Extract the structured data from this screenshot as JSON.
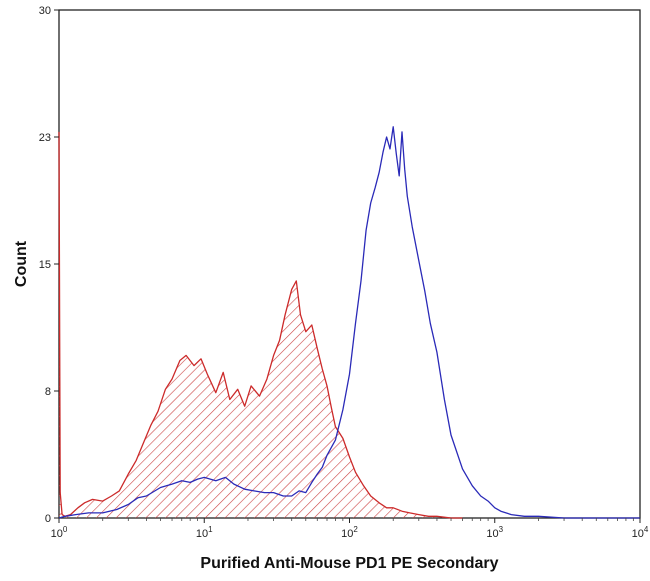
{
  "chart_data": {
    "type": "area",
    "xlabel": "Purified Anti-Mouse PD1 PE Secondary",
    "ylabel": "Count",
    "x_scale": "log",
    "xlim": [
      1,
      10000
    ],
    "ylim": [
      0,
      30
    ],
    "y_ticks": [
      {
        "value": 0,
        "label": "0"
      },
      {
        "value": 7.5,
        "label": "8"
      },
      {
        "value": 15,
        "label": "15"
      },
      {
        "value": 22.5,
        "label": "23"
      },
      {
        "value": 30,
        "label": "30"
      }
    ],
    "x_ticks": [
      {
        "value": 1,
        "base": "10",
        "exp": "0"
      },
      {
        "value": 10,
        "base": "10",
        "exp": "1"
      },
      {
        "value": 100,
        "base": "10",
        "exp": "2"
      },
      {
        "value": 1000,
        "base": "10",
        "exp": "3"
      },
      {
        "value": 10000,
        "base": "10",
        "exp": "4"
      }
    ],
    "grid": false,
    "series": [
      {
        "color": "#cc2a2a",
        "fill": "hatched",
        "x": [
          1.0,
          1.02,
          1.05,
          1.1,
          1.2,
          1.35,
          1.5,
          1.7,
          2.0,
          2.3,
          2.6,
          3.0,
          3.4,
          3.8,
          4.3,
          4.8,
          5.4,
          6.0,
          6.8,
          7.5,
          8.5,
          9.5,
          10.5,
          12.0,
          13.5,
          15.0,
          17.0,
          19.0,
          21.0,
          24.0,
          27.0,
          30.0,
          33.0,
          36.0,
          40.0,
          43.0,
          46.0,
          50.0,
          55.0,
          60.0,
          65.0,
          70.0,
          75.0,
          80.0,
          90.0,
          100.0,
          110.0,
          125.0,
          140.0,
          160.0,
          180.0,
          200.0,
          230.0,
          260.0,
          300.0,
          350.0,
          400.0,
          500.0,
          600.0
        ],
        "y": [
          22.8,
          1.5,
          0.2,
          0.1,
          0.2,
          0.6,
          0.9,
          1.1,
          1.0,
          1.3,
          1.6,
          2.6,
          3.4,
          4.4,
          5.5,
          6.3,
          7.6,
          8.2,
          9.3,
          9.6,
          9.0,
          9.4,
          8.5,
          7.4,
          8.6,
          7.0,
          7.6,
          6.6,
          7.8,
          7.2,
          8.2,
          9.6,
          10.5,
          12.0,
          13.5,
          14.0,
          12.0,
          11.0,
          11.4,
          10.0,
          8.8,
          7.8,
          6.5,
          5.4,
          4.7,
          3.6,
          2.7,
          1.9,
          1.3,
          0.9,
          0.6,
          0.6,
          0.4,
          0.3,
          0.2,
          0.1,
          0.1,
          0.0,
          0.0
        ]
      },
      {
        "color": "#2a2ab8",
        "fill": "none",
        "x": [
          1.0,
          1.1,
          1.3,
          1.6,
          2.0,
          2.5,
          3.0,
          3.5,
          4.0,
          5.0,
          6.0,
          7.0,
          8.0,
          9.0,
          10.0,
          12.0,
          14.0,
          16.0,
          19.0,
          22.0,
          26.0,
          30.0,
          35.0,
          40.0,
          45.0,
          50.0,
          55.0,
          60.0,
          65.0,
          70.0,
          80.0,
          90.0,
          100.0,
          110.0,
          120.0,
          130.0,
          140.0,
          150.0,
          160.0,
          170.0,
          180.0,
          190.0,
          200.0,
          210.0,
          220.0,
          230.0,
          240.0,
          250.0,
          270.0,
          300.0,
          330.0,
          360.0,
          400.0,
          450.0,
          500.0,
          600.0,
          700.0,
          800.0,
          900.0,
          1000.0,
          1100.0,
          1300.0,
          1600.0,
          2000.0,
          3000.0,
          5000.0,
          10000.0
        ],
        "y": [
          0.0,
          0.1,
          0.2,
          0.3,
          0.3,
          0.5,
          0.8,
          1.2,
          1.3,
          1.8,
          2.0,
          2.2,
          2.1,
          2.3,
          2.4,
          2.2,
          2.4,
          2.0,
          1.7,
          1.6,
          1.5,
          1.5,
          1.3,
          1.3,
          1.6,
          1.5,
          2.1,
          2.6,
          3.0,
          3.7,
          4.6,
          6.4,
          8.5,
          11.5,
          14.0,
          17.0,
          18.6,
          19.5,
          20.4,
          21.6,
          22.5,
          21.8,
          23.1,
          21.5,
          20.2,
          22.8,
          20.6,
          19.0,
          17.2,
          15.2,
          13.4,
          11.5,
          9.8,
          7.0,
          4.9,
          2.9,
          1.9,
          1.3,
          1.0,
          0.6,
          0.4,
          0.2,
          0.1,
          0.1,
          0.0,
          0.0,
          0.0
        ]
      }
    ]
  }
}
